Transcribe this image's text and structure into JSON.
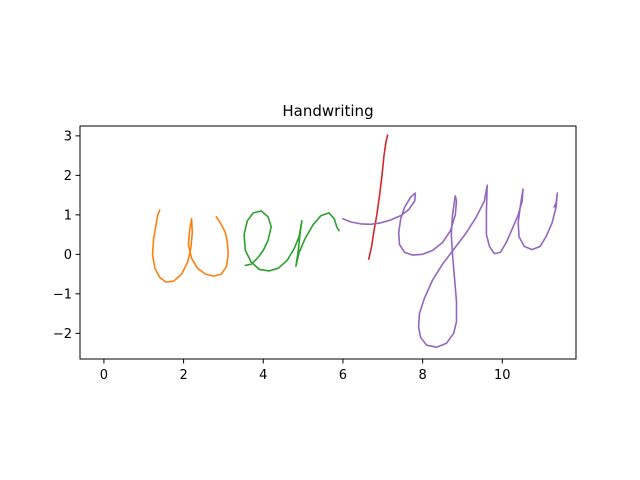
{
  "chart_data": {
    "type": "line",
    "title": "Handwriting",
    "xlabel": "",
    "ylabel": "",
    "xlim": [
      -0.6,
      11.85
    ],
    "ylim": [
      -2.65,
      3.25
    ],
    "xticks": [
      0,
      2,
      4,
      6,
      8,
      10
    ],
    "yticks": [
      -2,
      -1,
      0,
      1,
      2,
      3
    ],
    "grid": false,
    "series": [
      {
        "color": "#ff7f0e",
        "points": [
          [
            1.4,
            1.12
          ],
          [
            1.35,
            1.0
          ],
          [
            1.3,
            0.7
          ],
          [
            1.25,
            0.4
          ],
          [
            1.22,
            0.0
          ],
          [
            1.28,
            -0.35
          ],
          [
            1.4,
            -0.58
          ],
          [
            1.55,
            -0.7
          ],
          [
            1.75,
            -0.68
          ],
          [
            1.95,
            -0.5
          ],
          [
            2.1,
            -0.2
          ],
          [
            2.18,
            0.15
          ],
          [
            2.22,
            0.55
          ],
          [
            2.2,
            0.9
          ],
          [
            2.15,
            0.6
          ],
          [
            2.12,
            0.25
          ],
          [
            2.2,
            -0.1
          ],
          [
            2.35,
            -0.35
          ],
          [
            2.55,
            -0.5
          ],
          [
            2.75,
            -0.55
          ],
          [
            2.95,
            -0.5
          ],
          [
            3.08,
            -0.3
          ],
          [
            3.12,
            0.0
          ],
          [
            3.1,
            0.3
          ],
          [
            3.05,
            0.55
          ],
          [
            2.95,
            0.75
          ],
          [
            2.82,
            0.95
          ]
        ]
      },
      {
        "color": "#2ca02c",
        "points": [
          [
            3.55,
            -0.28
          ],
          [
            3.7,
            -0.25
          ],
          [
            3.85,
            -0.1
          ],
          [
            4.0,
            0.1
          ],
          [
            4.12,
            0.35
          ],
          [
            4.2,
            0.7
          ],
          [
            4.12,
            0.95
          ],
          [
            3.95,
            1.1
          ],
          [
            3.75,
            1.05
          ],
          [
            3.6,
            0.85
          ],
          [
            3.52,
            0.5
          ],
          [
            3.55,
            0.1
          ],
          [
            3.7,
            -0.2
          ],
          [
            3.9,
            -0.38
          ],
          [
            4.15,
            -0.42
          ],
          [
            4.38,
            -0.35
          ],
          [
            4.6,
            -0.15
          ],
          [
            4.78,
            0.15
          ],
          [
            4.9,
            0.45
          ],
          [
            4.97,
            0.85
          ],
          [
            4.92,
            0.5
          ],
          [
            4.88,
            0.1
          ],
          [
            4.82,
            -0.3
          ],
          [
            4.9,
            0.05
          ],
          [
            5.05,
            0.4
          ],
          [
            5.25,
            0.75
          ],
          [
            5.45,
            0.98
          ],
          [
            5.65,
            1.05
          ],
          [
            5.78,
            0.9
          ],
          [
            5.85,
            0.68
          ],
          [
            5.9,
            0.6
          ]
        ]
      },
      {
        "color": "#d62728",
        "points": [
          [
            6.65,
            -0.12
          ],
          [
            6.72,
            0.2
          ],
          [
            6.78,
            0.6
          ],
          [
            6.85,
            1.0
          ],
          [
            6.92,
            1.5
          ],
          [
            6.98,
            2.0
          ],
          [
            7.03,
            2.5
          ],
          [
            7.08,
            2.85
          ],
          [
            7.12,
            3.02
          ]
        ]
      },
      {
        "color": "#9467bd",
        "points": [
          [
            6.0,
            0.9
          ],
          [
            6.2,
            0.82
          ],
          [
            6.45,
            0.77
          ],
          [
            6.7,
            0.76
          ],
          [
            6.95,
            0.8
          ],
          [
            7.2,
            0.87
          ],
          [
            7.45,
            0.98
          ],
          [
            7.65,
            1.13
          ],
          [
            7.8,
            1.35
          ],
          [
            7.82,
            1.55
          ],
          [
            7.7,
            1.45
          ],
          [
            7.55,
            1.2
          ],
          [
            7.45,
            0.9
          ],
          [
            7.4,
            0.55
          ],
          [
            7.42,
            0.25
          ],
          [
            7.55,
            0.05
          ],
          [
            7.75,
            -0.02
          ],
          [
            8.0,
            0.0
          ],
          [
            8.25,
            0.1
          ],
          [
            8.5,
            0.3
          ],
          [
            8.7,
            0.6
          ],
          [
            8.82,
            1.0
          ],
          [
            8.85,
            1.35
          ],
          [
            8.82,
            1.48
          ],
          [
            8.75,
            1.0
          ],
          [
            8.72,
            0.5
          ],
          [
            8.75,
            0.0
          ],
          [
            8.8,
            -0.6
          ],
          [
            8.85,
            -1.2
          ],
          [
            8.85,
            -1.7
          ],
          [
            8.78,
            -2.0
          ],
          [
            8.6,
            -2.25
          ],
          [
            8.35,
            -2.35
          ],
          [
            8.1,
            -2.3
          ],
          [
            7.95,
            -2.1
          ],
          [
            7.9,
            -1.85
          ],
          [
            7.92,
            -1.5
          ],
          [
            8.05,
            -1.1
          ],
          [
            8.25,
            -0.65
          ],
          [
            8.5,
            -0.25
          ],
          [
            8.8,
            0.15
          ],
          [
            9.1,
            0.55
          ],
          [
            9.35,
            0.95
          ],
          [
            9.55,
            1.35
          ],
          [
            9.62,
            1.75
          ],
          [
            9.6,
            1.1
          ],
          [
            9.6,
            0.5
          ],
          [
            9.68,
            0.2
          ],
          [
            9.8,
            0.02
          ],
          [
            9.95,
            0.05
          ],
          [
            10.1,
            0.3
          ],
          [
            10.25,
            0.65
          ],
          [
            10.4,
            1.0
          ],
          [
            10.5,
            1.35
          ],
          [
            10.52,
            1.65
          ],
          [
            10.45,
            1.2
          ],
          [
            10.4,
            0.8
          ],
          [
            10.42,
            0.45
          ],
          [
            10.55,
            0.2
          ],
          [
            10.75,
            0.12
          ],
          [
            10.95,
            0.2
          ],
          [
            11.1,
            0.45
          ],
          [
            11.25,
            0.8
          ],
          [
            11.35,
            1.2
          ],
          [
            11.38,
            1.55
          ],
          [
            11.35,
            1.3
          ],
          [
            11.3,
            1.2
          ]
        ]
      }
    ]
  }
}
